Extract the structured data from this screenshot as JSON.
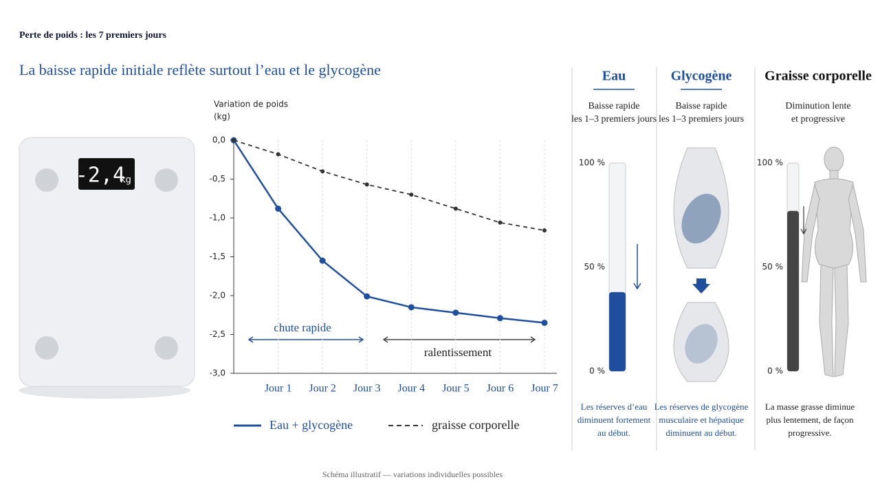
{
  "title": "Perte de poids : les 7 premiers jours",
  "subtitle": "La baisse rapide initiale reflète surtout l’eau et le glycogène",
  "scale_display": {
    "value": "-2,4",
    "unit": "kg"
  },
  "chart_data": {
    "type": "line",
    "y_label": [
      "Variation de poids",
      "(kg)"
    ],
    "categories": [
      null,
      "Jour 1",
      "Jour 2",
      "Jour 3",
      "Jour 4",
      "Jour 5",
      "Jour 6",
      "Jour 7"
    ],
    "series": [
      {
        "name": "Eau + glycogène",
        "color": "#1f4e9c",
        "values": [
          0,
          -0.88,
          -1.55,
          -2.01,
          -2.15,
          -2.22,
          -2.29,
          -2.35
        ]
      },
      {
        "name": "graisse corporelle",
        "color": "#333333",
        "dashed": true,
        "values": [
          0,
          -0.18,
          -0.4,
          -0.57,
          -0.7,
          -0.88,
          -1.06,
          -1.16
        ]
      }
    ],
    "ylim": [
      -3,
      0
    ],
    "yticks": [
      {
        "value": 0,
        "label": "0,0"
      },
      {
        "value": -0.5,
        "label": "-0,5"
      },
      {
        "value": -1,
        "label": "-1,0"
      },
      {
        "value": -1.5,
        "label": "-1,5"
      },
      {
        "value": -2,
        "label": "-2,0"
      },
      {
        "value": -2.5,
        "label": "-2,5"
      },
      {
        "value": -3,
        "label": "-3,0"
      }
    ],
    "grid": true,
    "annotations": [
      "chute rapide",
      "ralentissement"
    ]
  },
  "panels": [
    {
      "title": "Eau",
      "subtitle": [
        "Baisse rapide",
        "les 1–3 premiers jours"
      ],
      "level": 38,
      "color": "#1f4e9c",
      "ticks": [
        {
          "value": 100,
          "label": "100 %"
        },
        {
          "value": 50,
          "label": "50 %"
        },
        {
          "value": 0,
          "label": "0 %"
        }
      ],
      "caption": [
        "Les réserves d’eau",
        "diminuent fortement",
        "au début."
      ]
    },
    {
      "title": "Glycogène",
      "subtitle": [
        "Baisse rapide",
        "les 1–3 premiers jours"
      ],
      "caption": [
        "Les réserves de glycogène",
        "musculaire et hépatique",
        "diminuent au début."
      ]
    },
    {
      "title": "Graisse corporelle",
      "subtitle": [
        "Diminution lente",
        "et progressive"
      ],
      "level": 77,
      "color": "#444444",
      "ticks": [
        {
          "value": 100,
          "label": "100 %"
        },
        {
          "value": 50,
          "label": "50 %"
        },
        {
          "value": 0,
          "label": "0 %"
        }
      ],
      "caption": [
        "La masse grasse diminue",
        "plus lentement, de façon",
        "progressive."
      ]
    }
  ],
  "footer": "Schéma illustratif — variations individuelles possibles"
}
